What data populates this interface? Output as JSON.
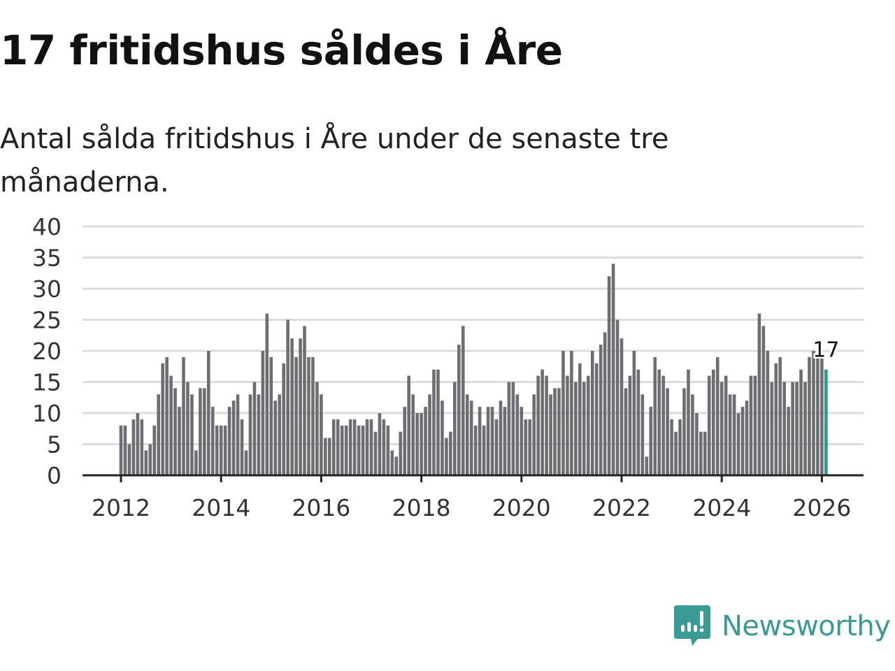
{
  "title": "17 fritidshus såldes i Åre",
  "subtitle": "Antal sålda fritidshus i Åre under de senaste tre månaderna.",
  "brand": {
    "name": "Newsworthy",
    "color": "#3a9a94"
  },
  "colors": {
    "bar": "#6e6d72",
    "highlight": "#1a9e96",
    "grid": "#dcdcdc",
    "axis": "#222222"
  },
  "chart_data": {
    "type": "bar",
    "title": "17 fritidshus såldes i Åre",
    "xlabel": "",
    "ylabel": "",
    "ylim": [
      0,
      40
    ],
    "yticks": [
      0,
      5,
      10,
      15,
      20,
      25,
      30,
      35,
      40
    ],
    "xticks": [
      "2012",
      "2014",
      "2016",
      "2018",
      "2020",
      "2022",
      "2024",
      "2026"
    ],
    "grid": true,
    "start": "2012-01",
    "frequency": "monthly",
    "highlight_label": "17",
    "values": [
      8,
      8,
      5,
      9,
      10,
      9,
      4,
      5,
      8,
      13,
      18,
      19,
      16,
      14,
      11,
      19,
      15,
      13,
      4,
      14,
      14,
      20,
      11,
      8,
      8,
      8,
      11,
      12,
      13,
      9,
      4,
      13,
      15,
      13,
      20,
      26,
      19,
      12,
      13,
      18,
      25,
      22,
      19,
      22,
      24,
      19,
      19,
      15,
      13,
      6,
      6,
      9,
      9,
      8,
      8,
      9,
      9,
      8,
      8,
      9,
      9,
      7,
      10,
      9,
      8,
      4,
      3,
      7,
      11,
      16,
      13,
      10,
      10,
      11,
      13,
      17,
      17,
      12,
      6,
      7,
      15,
      21,
      24,
      13,
      12,
      8,
      11,
      8,
      11,
      11,
      9,
      12,
      11,
      15,
      15,
      13,
      11,
      9,
      9,
      13,
      16,
      17,
      16,
      13,
      14,
      14,
      20,
      16,
      20,
      15,
      18,
      15,
      16,
      20,
      18,
      21,
      23,
      32,
      34,
      25,
      22,
      14,
      16,
      20,
      17,
      13,
      3,
      11,
      19,
      17,
      16,
      14,
      9,
      7,
      9,
      14,
      17,
      13,
      10,
      7,
      7,
      16,
      17,
      19,
      15,
      16,
      13,
      13,
      10,
      11,
      12,
      16,
      16,
      26,
      24,
      20,
      15,
      18,
      19,
      15,
      11,
      15,
      15,
      17,
      15,
      19,
      20,
      19,
      19,
      17
    ]
  }
}
